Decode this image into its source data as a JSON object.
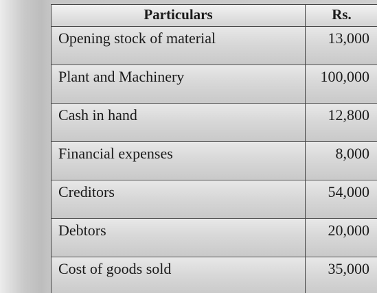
{
  "table": {
    "headers": {
      "particulars": "Particulars",
      "amount": "Rs."
    },
    "rows": [
      {
        "label": "Opening stock of material",
        "value": "13,000"
      },
      {
        "label": "Plant and Machinery",
        "value": "100,000"
      },
      {
        "label": "Cash in hand",
        "value": "12,800"
      },
      {
        "label": "Financial expenses",
        "value": "8,000"
      },
      {
        "label": "Creditors",
        "value": "54,000"
      },
      {
        "label": "Debtors",
        "value": "20,000"
      },
      {
        "label": "Cost of goods sold",
        "value": "35,000"
      }
    ]
  }
}
